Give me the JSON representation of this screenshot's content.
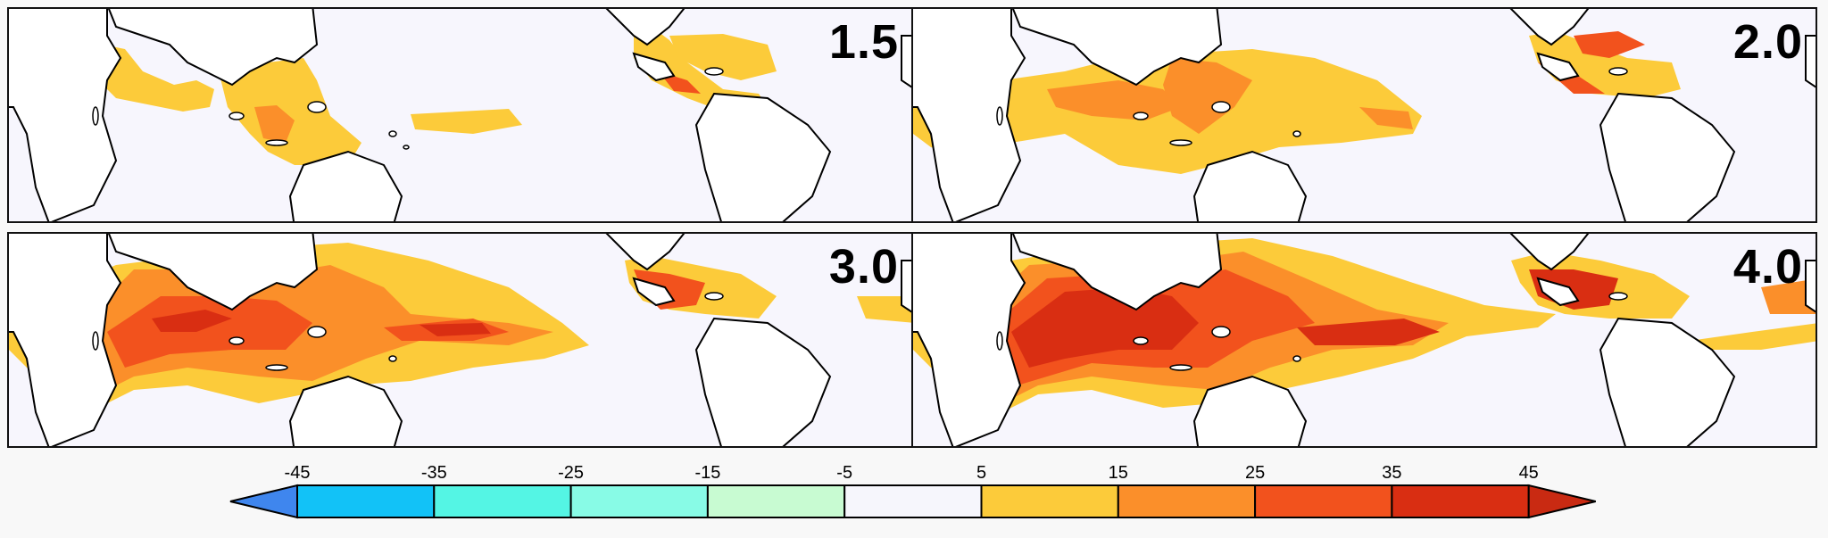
{
  "panels": [
    {
      "label": "1.5"
    },
    {
      "label": "2.0"
    },
    {
      "label": "3.0"
    },
    {
      "label": "4.0"
    }
  ],
  "colorbar": {
    "ticks": [
      "-45",
      "-35",
      "-25",
      "-15",
      "-5",
      "5",
      "15",
      "25",
      "35",
      "45"
    ],
    "colors": {
      "under": "#3f86ee",
      "bins": [
        "#12c2f7",
        "#54f5e4",
        "#88fbe6",
        "#c8fbd2",
        "#f6f6fc",
        "#fccb3a",
        "#fb8f2a",
        "#f2521d",
        "#d92e12"
      ],
      "over": "#c92a12"
    }
  },
  "colors": {
    "ocean": "#f7f6fd",
    "land": "#ffffff",
    "coast": "#000000",
    "level1": "#fccb3a",
    "level2": "#fb8f2a",
    "level3": "#f2521d",
    "level4": "#d92e12"
  }
}
